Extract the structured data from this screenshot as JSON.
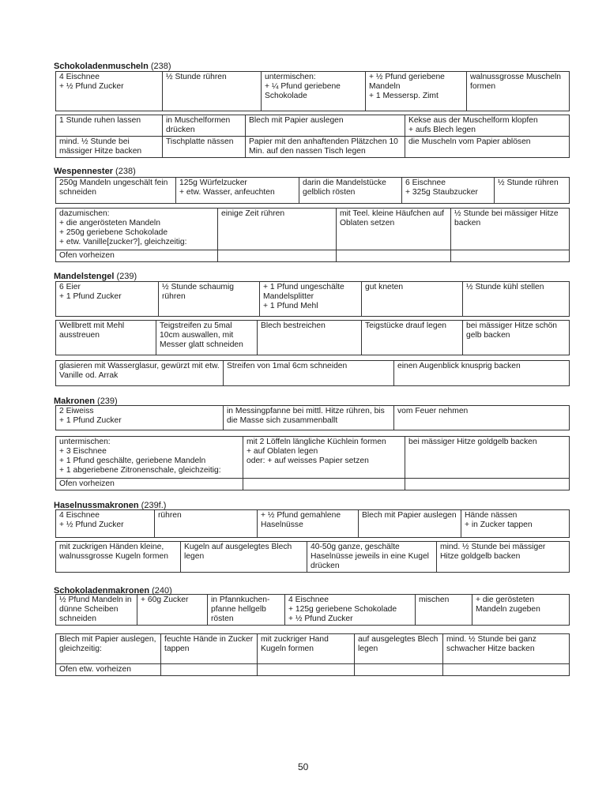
{
  "page_number": "50",
  "recipes": [
    {
      "title_bold": "Schokoladenmuscheln",
      "title_ref": " (238)",
      "tables": [
        [
          [
            "4 Eischnee\n+ ½ Pfund Zucker",
            "½ Stunde rühren",
            "untermischen:\n+ ¼ Pfund geriebene Schokolade",
            "+ ½ Pfund geriebene Mandeln\n+ 1 Messersp. Zimt",
            "walnussgrosse Muscheln formen"
          ]
        ],
        [
          [
            "1 Stunde ruhen lassen",
            "in Muschelformen drücken",
            "Blech mit Papier auslegen",
            "Kekse aus der Muschelform klopfen\n+ aufs Blech legen"
          ],
          [
            "mind. ½ Stunde bei mässiger Hitze backen",
            "Tischplatte nässen",
            "Papier mit den anhaftenden Plätzchen 10 Min. auf den nassen Tisch legen",
            "die Muscheln vom Papier ablösen"
          ]
        ]
      ]
    },
    {
      "title_bold": "Wespennester",
      "title_prefix": "Wespen",
      "title_ref": " (238)",
      "tables": [
        [
          [
            "250g Mandeln ungeschält fein schneiden",
            "125g Würfelzucker\n+ etw. Wasser, anfeuchten",
            "darin die Mandelstücke gelblich rösten",
            "6 Eischnee\n+ 325g Staubzucker",
            "½ Stunde rühren"
          ]
        ],
        [
          [
            "dazumischen:\n+ die angerösteten Mandeln\n+ 250g geriebene Schokolade\n+ etw. Vanille[zucker?], gleichzeitig:",
            "einige Zeit rühren",
            "mit Teel. kleine Häufchen auf Oblaten setzen",
            "½ Stunde bei mässiger Hitze backen"
          ],
          [
            "Ofen vorheizen",
            "",
            "",
            ""
          ]
        ]
      ]
    },
    {
      "title_bold": "Mandelstengel",
      "title_ref": " (239)",
      "tables": [
        [
          [
            "6 Eier\n+ 1 Pfund Zucker",
            "½ Stunde schaumig rühren",
            "+ 1 Pfund ungeschälte Mandelsplitter\n+ 1 Pfund Mehl",
            "gut kneten",
            "½ Stunde kühl stellen"
          ]
        ],
        [
          [
            "Wellbrett mit Mehl ausstreuen",
            "Teigstreifen zu 5mal 10cm auswallen, mit Messer glatt schneiden",
            "Blech bestreichen",
            "Teigstücke drauf legen",
            "bei mässiger Hitze schön gelb backen"
          ]
        ],
        [
          [
            "glasieren mit Wasserglasur, gewürzt mit etw. Vanille od. Arrak",
            "Streifen von 1mal 6cm schneiden",
            "einen Augenblick knusprig backen"
          ]
        ]
      ]
    },
    {
      "title_bold": "Makronen",
      "title_ref": " (239)",
      "tables": [
        [
          [
            "2 Eiweiss\n+ 1 Pfund Zucker",
            "in Messingpfanne bei mittl. Hitze rühren, bis die Masse sich zusammenballt",
            "vom Feuer nehmen"
          ]
        ],
        [
          [
            "untermischen:\n+ 3 Eischnee\n+ 1 Pfund geschälte, geriebene Mandeln\n+ 1 abgeriebene Zitronenschale, gleichzeitig:",
            "mit 2 Löffeln längliche Küchlein formen\n+ auf Oblaten legen\noder: + auf weisses Papier setzen",
            "bei mässiger Hitze goldgelb backen"
          ],
          [
            "Ofen vorheizen",
            "",
            ""
          ]
        ]
      ]
    },
    {
      "title_bold": "Haselnussmakronen",
      "title_ref": " (239f.)",
      "tables": [
        [
          [
            "4 Eischnee\n+ ½ Pfund Zucker",
            "rühren",
            "+ ½ Pfund gemahlene Haselnüsse",
            "Blech mit Papier auslegen",
            "Hände nässen\n+ in Zucker tappen"
          ]
        ],
        [
          [
            "mit zuckrigen Händen kleine, walnussgrosse Kugeln formen",
            "Kugeln auf ausgelegtes Blech legen",
            "40-50g ganze, geschälte Haselnüsse jeweils in eine Kugel drücken",
            "mind. ½ Stunde bei mässiger Hitze goldgelb backen"
          ]
        ]
      ]
    },
    {
      "title_bold": "Schokoladenmakronen",
      "title_ref": " (240)",
      "tables": [
        [
          [
            "½ Pfund Mandeln in dünne Scheiben schneiden",
            "+ 60g Zucker",
            "in Pfannkuchen-pfanne hellgelb rösten",
            "4 Eischnee\n+ 125g geriebene Schokolade\n+ ½ Pfund Zucker",
            "mischen",
            "+ die gerösteten Mandeln zugeben"
          ]
        ],
        [
          [
            "Blech mit Papier auslegen, gleichzeitig:",
            "feuchte Hände in Zucker tappen",
            "mit zuckriger Hand Kugeln formen",
            "auf ausgelegtes Blech legen",
            "mind. ½ Stunde bei ganz schwacher Hitze backen"
          ],
          [
            "Ofen etw. vorheizen",
            "",
            "",
            "",
            ""
          ]
        ]
      ]
    }
  ]
}
